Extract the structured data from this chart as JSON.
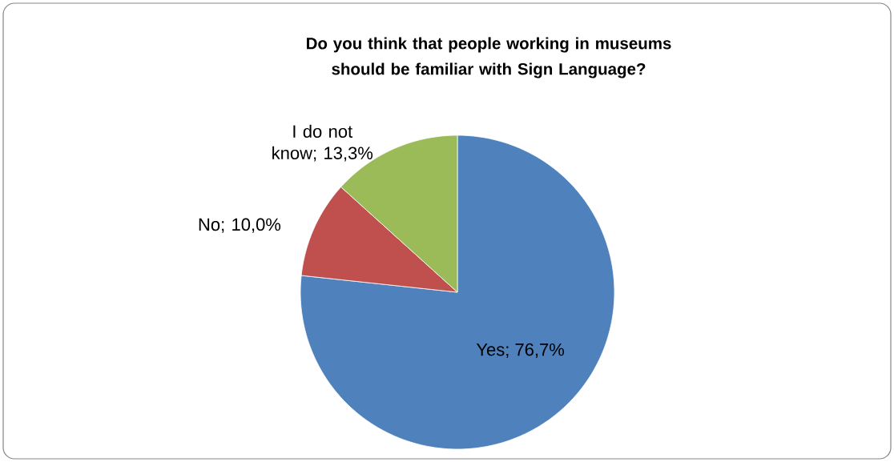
{
  "chart_data": {
    "type": "pie",
    "title": "Do you think that people working in museums should be familiar with Sign Language?",
    "categories": [
      "Yes",
      "No",
      "I do not know"
    ],
    "values": [
      76.7,
      10.0,
      13.3
    ],
    "value_labels": [
      "; 76,7%",
      "; 10,0%",
      "; 13,3%"
    ],
    "colors": [
      "#4f81bd",
      "#c0504d",
      "#9bbb59"
    ]
  }
}
